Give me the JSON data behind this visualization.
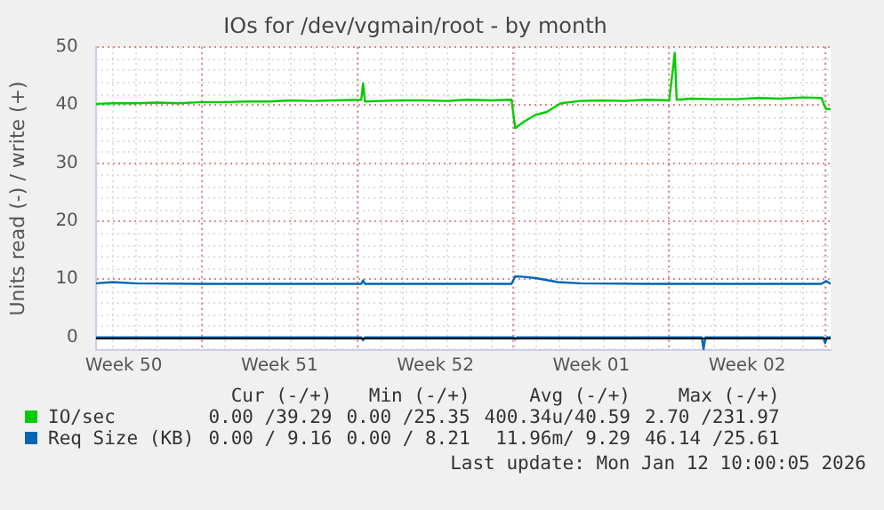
{
  "chart_data": {
    "type": "line",
    "title": "IOs for /dev/vgmain/root - by month",
    "ylabel": "Units read (-) / write (+)",
    "xlim": [
      "2025-12-10T06:00",
      "2026-01-12T06:00"
    ],
    "xticks": [
      {
        "value": "2025-12-11T12:00",
        "label": "Week 50"
      },
      {
        "value": "2025-12-15",
        "label": null
      },
      {
        "value": "2025-12-18T12:00",
        "label": "Week 51"
      },
      {
        "value": "2025-12-22",
        "label": null
      },
      {
        "value": "2025-12-25T12:00",
        "label": "Week 52"
      },
      {
        "value": "2025-12-29",
        "label": null
      },
      {
        "value": "2026-01-01T12:00",
        "label": "Week 01"
      },
      {
        "value": "2026-01-05",
        "label": null
      },
      {
        "value": "2026-01-08T12:00",
        "label": "Week 02"
      },
      {
        "value": "2026-01-12",
        "label": null
      }
    ],
    "ylim": [
      -2.2,
      50
    ],
    "yticks": [
      0,
      10,
      20,
      30,
      40,
      50
    ],
    "grid": true,
    "legend": "bottom",
    "marker": "none",
    "line_style": "solid",
    "series": [
      {
        "name": "IO/sec",
        "color": "#00cc00",
        "x": [
          "2025-12-10T06:00",
          "2025-12-11",
          "2025-12-12",
          "2025-12-13",
          "2025-12-14",
          "2025-12-15",
          "2025-12-16",
          "2025-12-17",
          "2025-12-18",
          "2025-12-19",
          "2025-12-20",
          "2025-12-21",
          "2025-12-22T04:00",
          "2025-12-22T06:00",
          "2025-12-22T08:00",
          "2025-12-23",
          "2025-12-24",
          "2025-12-25",
          "2025-12-26",
          "2025-12-27",
          "2025-12-28",
          "2025-12-28T22:00",
          "2025-12-29T02:00",
          "2025-12-29T12:00",
          "2025-12-30",
          "2025-12-30T12:00",
          "2025-12-31T03:00",
          "2026-01-01",
          "2026-01-02",
          "2026-01-03",
          "2026-01-04",
          "2026-01-05",
          "2026-01-05T06:00",
          "2026-01-05T08:00",
          "2026-01-06",
          "2026-01-07",
          "2026-01-08",
          "2026-01-09",
          "2026-01-10",
          "2026-01-11",
          "2026-01-11T20:00",
          "2026-01-12T01:00",
          "2026-01-12T06:00"
        ],
        "values": [
          40.2,
          40.3,
          40.3,
          40.4,
          40.3,
          40.5,
          40.5,
          40.6,
          40.6,
          40.8,
          40.7,
          40.8,
          40.9,
          43.7,
          40.6,
          40.7,
          40.8,
          40.8,
          40.7,
          40.9,
          40.8,
          40.9,
          36.0,
          37.2,
          38.3,
          38.8,
          40.3,
          40.7,
          40.8,
          40.7,
          40.9,
          40.8,
          49.0,
          40.9,
          41.1,
          41.0,
          41.0,
          41.2,
          41.1,
          41.3,
          41.2,
          39.3,
          39.3
        ]
      },
      {
        "name": "Req Size (KB)",
        "color": "#0066b3",
        "x": [
          "2025-12-10T06:00",
          "2025-12-11",
          "2025-12-12",
          "2025-12-15",
          "2025-12-18",
          "2025-12-22T04:00",
          "2025-12-22T06:00",
          "2025-12-22T08:00",
          "2025-12-25",
          "2025-12-28T22:00",
          "2025-12-29T02:00",
          "2025-12-29T12:00",
          "2025-12-30",
          "2025-12-31",
          "2026-01-01",
          "2026-01-04",
          "2026-01-08",
          "2026-01-11T20:00",
          "2026-01-12T01:00",
          "2026-01-12T06:00"
        ],
        "values": [
          9.3,
          9.5,
          9.3,
          9.2,
          9.2,
          9.2,
          9.8,
          9.2,
          9.2,
          9.2,
          10.5,
          10.4,
          10.2,
          9.5,
          9.3,
          9.2,
          9.2,
          9.2,
          9.7,
          9.2
        ]
      },
      {
        "color": "#0066b3",
        "x": [
          "2025-12-10T06:00",
          "2025-12-22T04:00",
          "2025-12-22T06:00",
          "2025-12-22T08:00",
          "2025-12-29T00:00",
          "2025-12-29T02:00",
          "2025-12-29T04:00",
          "2026-01-06T11:00",
          "2026-01-06T13:00",
          "2026-01-06T15:00",
          "2026-01-11T22:00",
          "2026-01-12T00:00",
          "2026-01-12T02:00",
          "2026-01-12T06:00"
        ],
        "values": [
          0,
          0,
          -0.5,
          0,
          0,
          -0.3,
          0,
          0,
          -2.0,
          0,
          0,
          -1.0,
          0,
          0
        ]
      }
    ],
    "annotations": [
      "Cur (-/+)",
      "Min (-/+)",
      "Avg (-/+)",
      "Max (-/+)",
      "0.00 /39.29",
      "0.00 /25.35",
      "400.34u/40.59",
      "2.70 /231.97",
      "0.00 / 9.16",
      "0.00 / 8.21",
      "11.96m/ 9.29",
      "46.14 /25.61",
      "Last update: Mon Jan 12 10:00:05 2026"
    ]
  }
}
